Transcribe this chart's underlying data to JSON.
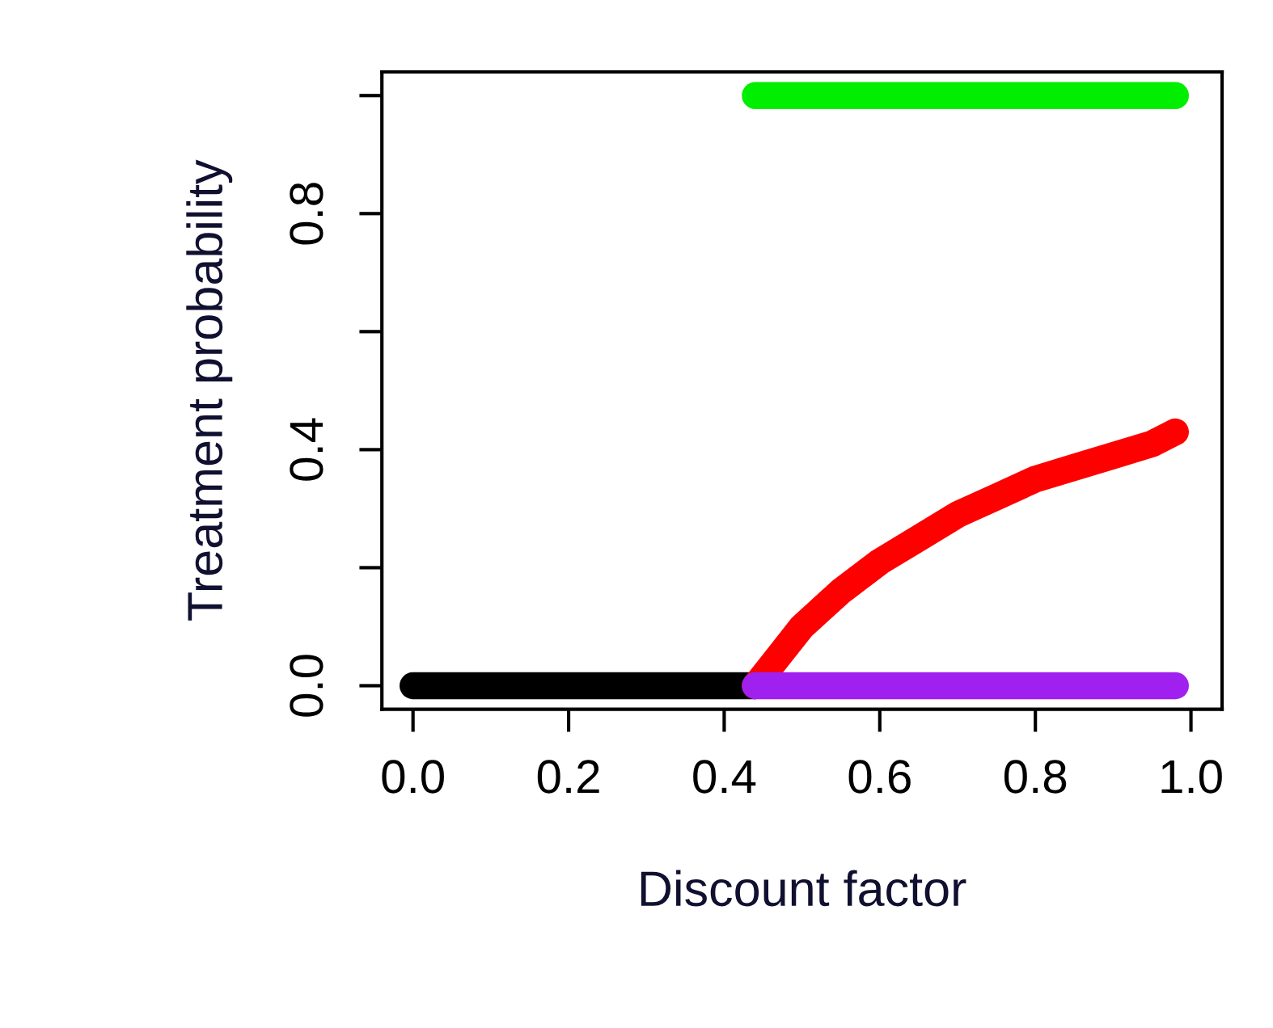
{
  "chart_data": {
    "type": "line",
    "xlabel": "Discount factor",
    "ylabel": "Treatment probability",
    "xlim": [
      -0.04,
      1.04
    ],
    "ylim": [
      -0.04,
      1.04
    ],
    "xticks": [
      {
        "value": 0,
        "label": "0.0"
      },
      0.2,
      0.4,
      0.6,
      0.8,
      {
        "value": 1,
        "label": "1.0"
      }
    ],
    "yticks": [
      {
        "value": 0,
        "label": "0.0"
      },
      {
        "value": 0.2,
        "label": null
      },
      0.4,
      {
        "value": 0.6,
        "label": null
      },
      0.8,
      {
        "value": 1.0,
        "label": null
      }
    ],
    "grid": false,
    "legend": false,
    "line_style": "solid",
    "series": [
      {
        "color": "#000000",
        "x": [
          0.0,
          0.44
        ],
        "values": [
          0.0,
          0.0
        ]
      },
      {
        "color": "#00ee00",
        "x": [
          0.44,
          0.98
        ],
        "values": [
          1.0,
          1.0
        ]
      },
      {
        "color": "#ff0000",
        "x": [
          0.44,
          0.47,
          0.5,
          0.55,
          0.6,
          0.65,
          0.7,
          0.75,
          0.8,
          0.85,
          0.9,
          0.95,
          0.98
        ],
        "values": [
          0.0,
          0.05,
          0.1,
          0.16,
          0.21,
          0.25,
          0.29,
          0.32,
          0.35,
          0.37,
          0.39,
          0.41,
          0.43
        ]
      },
      {
        "color": "#a020f0",
        "x": [
          0.44,
          0.98
        ],
        "values": [
          0.0,
          0.0
        ]
      }
    ]
  }
}
